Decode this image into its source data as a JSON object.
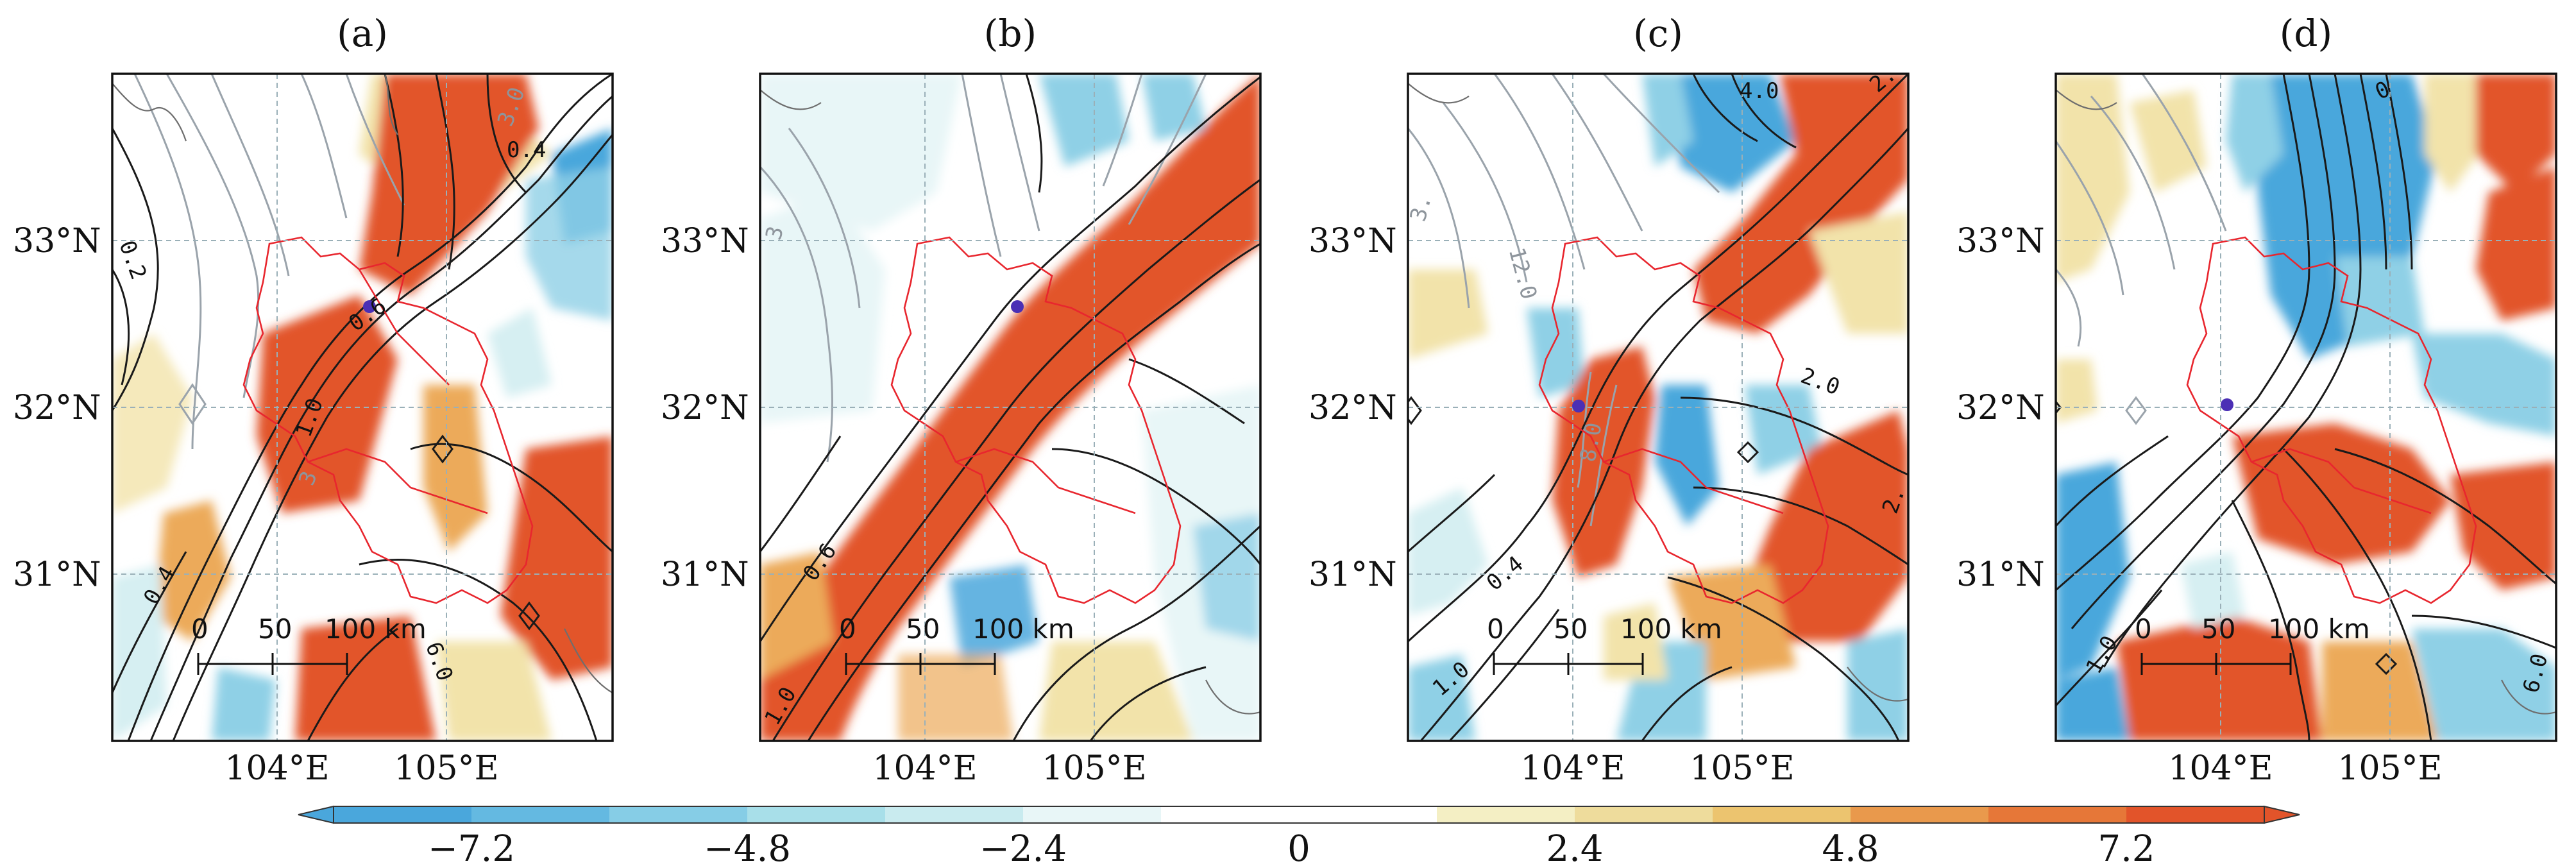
{
  "panels": [
    {
      "id": "a",
      "title": "(a)",
      "marker": "purple-dot",
      "contour_labels": [
        {
          "text": "0.4"
        },
        {
          "text": "0.2"
        },
        {
          "text": "0.6"
        },
        {
          "text": "1.0"
        },
        {
          "text": "0.4"
        },
        {
          "text": "6.0"
        }
      ],
      "contour_labels_grey": [
        {
          "text": "3.0"
        },
        {
          "text": "3"
        }
      ]
    },
    {
      "id": "b",
      "title": "(b)",
      "marker": "purple-dot",
      "contour_labels": [
        {
          "text": "0.6"
        },
        {
          "text": "1.0"
        }
      ],
      "contour_labels_grey": [
        {
          "text": "3"
        }
      ]
    },
    {
      "id": "c",
      "title": "(c)",
      "marker": "purple-dot",
      "contour_labels": [
        {
          "text": "4.0"
        },
        {
          "text": "2."
        },
        {
          "text": "2.0"
        },
        {
          "text": "0.4"
        },
        {
          "text": "1.0"
        },
        {
          "text": "2."
        }
      ],
      "contour_labels_grey": [
        {
          "text": "12.0"
        },
        {
          "text": "3."
        },
        {
          "text": "8.0"
        }
      ]
    },
    {
      "id": "d",
      "title": "(d)",
      "marker": "purple-dot",
      "contour_labels": [
        {
          "text": "0"
        },
        {
          "text": "1.0"
        },
        {
          "text": "6.0"
        }
      ],
      "contour_labels_grey": []
    }
  ],
  "axes": {
    "x_ticks": [
      "104°E",
      "105°E"
    ],
    "y_ticks": [
      "33°N",
      "32°N",
      "31°N"
    ]
  },
  "scale_bar": {
    "labels": [
      "0",
      "50",
      "100 km"
    ]
  },
  "colorbar": {
    "ticks": [
      "−7.2",
      "−4.8",
      "−2.4",
      "0",
      "2.4",
      "4.8",
      "7.2"
    ],
    "colors": [
      "#4aa7dc",
      "#64b9e1",
      "#86cde6",
      "#a8dfe9",
      "#c9ebef",
      "#e8f6f7",
      "#ffffff",
      "#ffffff",
      "#f4efc4",
      "#eedc9c",
      "#ecc46f",
      "#e9994c",
      "#e67738",
      "#e2542a"
    ]
  },
  "map_colors": {
    "red_strong": "#e2542a",
    "red": "#e67738",
    "orange": "#ecaa5a",
    "yellow": "#f2e3aa",
    "blue_strong": "#4aa7dc",
    "blue": "#8fd0e6",
    "blue_light": "#d6eff2",
    "boundary": "#e8262e",
    "contour_black": "#1a1a1a",
    "contour_grey": "#9aa3ab",
    "grid": "#9ab0b8",
    "marker": "#4b2fb5"
  }
}
